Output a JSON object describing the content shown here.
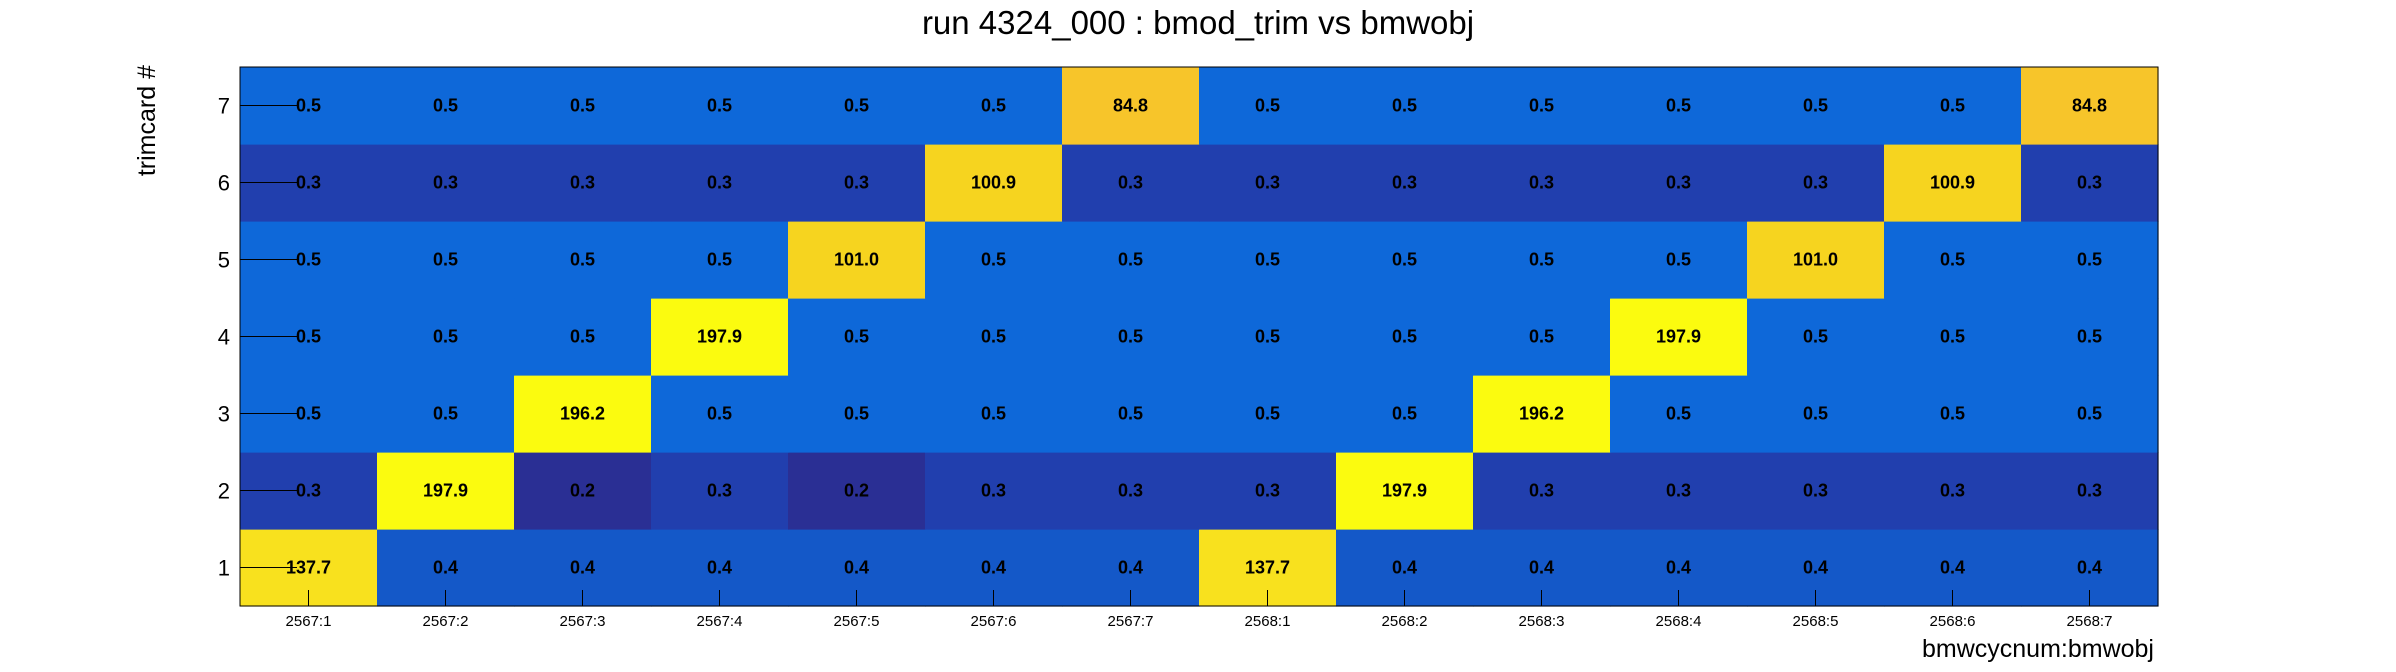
{
  "chart_data": {
    "type": "heatmap",
    "title": "run 4324_000 : bmod_trim vs bmwobj",
    "xlabel": "bmwcycnum:bmwobj",
    "ylabel": "trimcard #",
    "x_categories": [
      "2567:1",
      "2567:2",
      "2567:3",
      "2567:4",
      "2567:5",
      "2567:6",
      "2567:7",
      "2568:1",
      "2568:2",
      "2568:3",
      "2568:4",
      "2568:5",
      "2568:6",
      "2568:7"
    ],
    "y_categories": [
      "1",
      "2",
      "3",
      "4",
      "5",
      "6",
      "7"
    ],
    "values": [
      [
        137.7,
        0.4,
        0.4,
        0.4,
        0.4,
        0.4,
        0.4,
        137.7,
        0.4,
        0.4,
        0.4,
        0.4,
        0.4,
        0.4
      ],
      [
        0.3,
        197.9,
        0.2,
        0.3,
        0.2,
        0.3,
        0.3,
        0.3,
        197.9,
        0.3,
        0.3,
        0.3,
        0.3,
        0.3
      ],
      [
        0.5,
        0.5,
        196.2,
        0.5,
        0.5,
        0.5,
        0.5,
        0.5,
        0.5,
        196.2,
        0.5,
        0.5,
        0.5,
        0.5
      ],
      [
        0.5,
        0.5,
        0.5,
        197.9,
        0.5,
        0.5,
        0.5,
        0.5,
        0.5,
        0.5,
        197.9,
        0.5,
        0.5,
        0.5
      ],
      [
        0.5,
        0.5,
        0.5,
        0.5,
        101.0,
        0.5,
        0.5,
        0.5,
        0.5,
        0.5,
        0.5,
        101.0,
        0.5,
        0.5
      ],
      [
        0.3,
        0.3,
        0.3,
        0.3,
        0.3,
        100.9,
        0.3,
        0.3,
        0.3,
        0.3,
        0.3,
        0.3,
        100.9,
        0.3
      ],
      [
        0.5,
        0.5,
        0.5,
        0.5,
        0.5,
        0.5,
        84.8,
        0.5,
        0.5,
        0.5,
        0.5,
        0.5,
        0.5,
        84.8
      ]
    ],
    "value_labels": [
      [
        "137.7",
        "0.4",
        "0.4",
        "0.4",
        "0.4",
        "0.4",
        "0.4",
        "137.7",
        "0.4",
        "0.4",
        "0.4",
        "0.4",
        "0.4",
        "0.4"
      ],
      [
        "0.3",
        "197.9",
        "0.2",
        "0.3",
        "0.2",
        "0.3",
        "0.3",
        "0.3",
        "197.9",
        "0.3",
        "0.3",
        "0.3",
        "0.3",
        "0.3"
      ],
      [
        "0.5",
        "0.5",
        "196.2",
        "0.5",
        "0.5",
        "0.5",
        "0.5",
        "0.5",
        "0.5",
        "196.2",
        "0.5",
        "0.5",
        "0.5",
        "0.5"
      ],
      [
        "0.5",
        "0.5",
        "0.5",
        "197.9",
        "0.5",
        "0.5",
        "0.5",
        "0.5",
        "0.5",
        "0.5",
        "197.9",
        "0.5",
        "0.5",
        "0.5"
      ],
      [
        "0.5",
        "0.5",
        "0.5",
        "0.5",
        "101.0",
        "0.5",
        "0.5",
        "0.5",
        "0.5",
        "0.5",
        "0.5",
        "101.0",
        "0.5",
        "0.5"
      ],
      [
        "0.3",
        "0.3",
        "0.3",
        "0.3",
        "0.3",
        "100.9",
        "0.3",
        "0.3",
        "0.3",
        "0.3",
        "0.3",
        "0.3",
        "100.9",
        "0.3"
      ],
      [
        "0.5",
        "0.5",
        "0.5",
        "0.5",
        "0.5",
        "0.5",
        "84.8",
        "0.5",
        "0.5",
        "0.5",
        "0.5",
        "0.5",
        "0.5",
        "84.8"
      ]
    ],
    "colors": {
      "background": "#ffffff",
      "axis": "#000000",
      "gradient": [
        "#2a2f94",
        "#213fae",
        "#1458c8",
        "#0e68d9",
        "#1072e0",
        "#f7c52a",
        "#f6d41f",
        "#f8e11e",
        "#fbfb0f"
      ]
    },
    "legend": "none",
    "grid": false
  }
}
